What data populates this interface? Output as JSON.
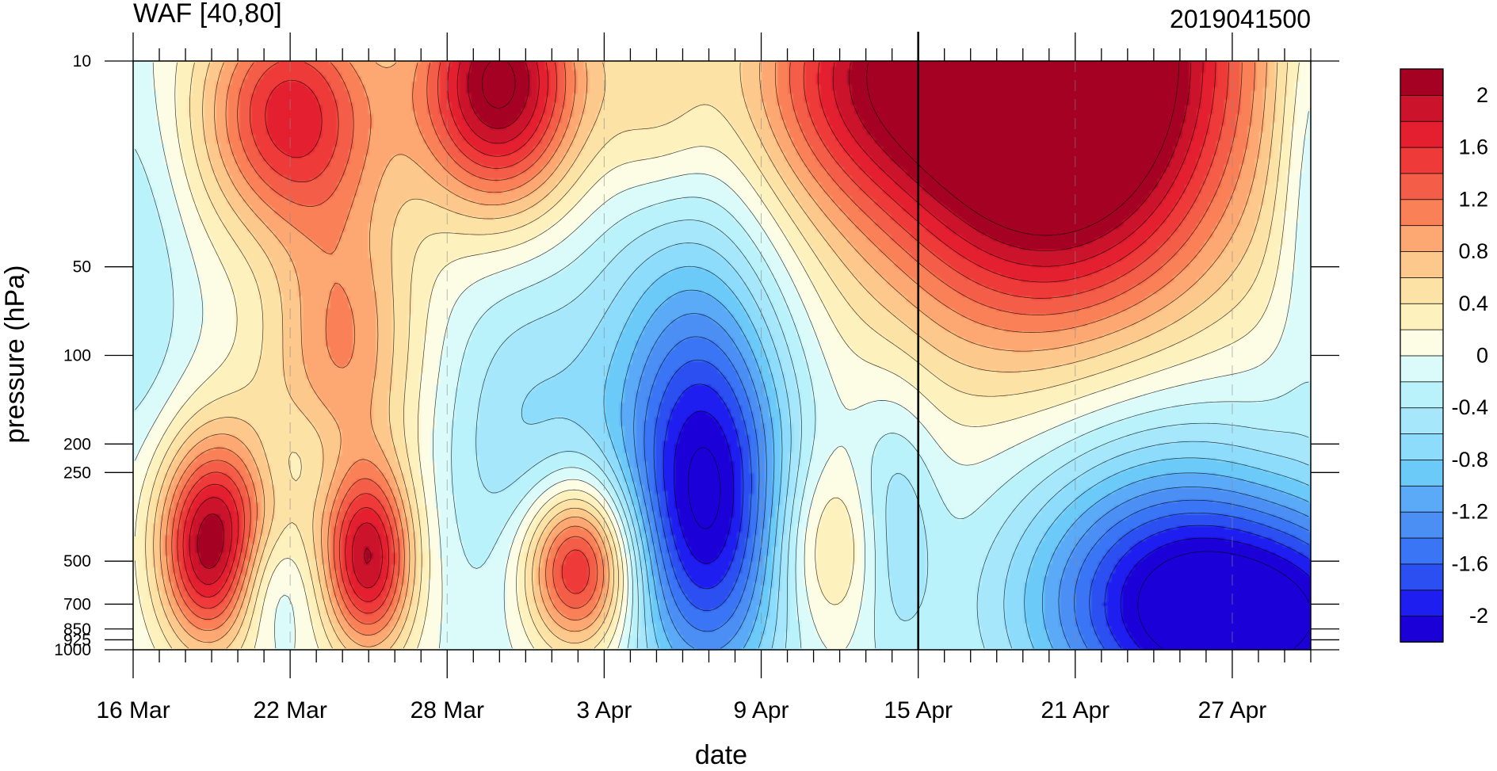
{
  "chart_data": {
    "type": "heatmap",
    "subtype": "filled-contour",
    "title": "WAF [40,80]",
    "run_label": "2019041500",
    "xlabel": "date",
    "ylabel": "pressure (hPa)",
    "y_scale": "log",
    "y_reversed": true,
    "ylim": [
      1000,
      10
    ],
    "x_ticks": [
      {
        "date": "2019-03-16",
        "label": "16 Mar"
      },
      {
        "date": "2019-03-22",
        "label": "22 Mar"
      },
      {
        "date": "2019-03-28",
        "label": "28 Mar"
      },
      {
        "date": "2019-04-03",
        "label": "3 Apr"
      },
      {
        "date": "2019-04-09",
        "label": "9 Apr"
      },
      {
        "date": "2019-04-15",
        "label": "15 Apr"
      },
      {
        "date": "2019-04-21",
        "label": "21 Apr"
      },
      {
        "date": "2019-04-27",
        "label": "27 Apr"
      }
    ],
    "xlim": [
      "2019-03-16",
      "2019-04-30"
    ],
    "y_ticks": [
      {
        "value": 10,
        "label": "10"
      },
      {
        "value": 50,
        "label": "50"
      },
      {
        "value": 100,
        "label": "100"
      },
      {
        "value": 200,
        "label": "200"
      },
      {
        "value": 250,
        "label": "250"
      },
      {
        "value": 500,
        "label": "500"
      },
      {
        "value": 700,
        "label": "700"
      },
      {
        "value": 850,
        "label": "850"
      },
      {
        "value": 925,
        "label": "925"
      },
      {
        "value": 1000,
        "label": "1000"
      }
    ],
    "forecast_start_date": "2019-04-15",
    "colorbar": {
      "levels": [
        -2.2,
        -2.0,
        -1.8,
        -1.6,
        -1.4,
        -1.2,
        -1.0,
        -0.8,
        -0.6,
        -0.4,
        -0.2,
        0.0,
        0.2,
        0.4,
        0.6,
        0.8,
        1.0,
        1.2,
        1.4,
        1.6,
        1.8,
        2.0,
        2.2
      ],
      "colors": [
        "#1c00d8",
        "#1f1ef1",
        "#2b4ff0",
        "#3975f4",
        "#4b8ff5",
        "#5aaaf7",
        "#6ccaf9",
        "#8edcfb",
        "#a6e7fb",
        "#b9f2fa",
        "#dbfbfb",
        "#fdfde6",
        "#fdf1bd",
        "#fde2a6",
        "#fdc88b",
        "#fda872",
        "#fa8057",
        "#f45d47",
        "#ee3b39",
        "#e41f30",
        "#cc132c",
        "#a40123"
      ],
      "labels": [
        {
          "value": 2.0,
          "label": "2"
        },
        {
          "value": 1.6,
          "label": "1.6"
        },
        {
          "value": 1.2,
          "label": "1.2"
        },
        {
          "value": 0.8,
          "label": "0.8"
        },
        {
          "value": 0.4,
          "label": "0.4"
        },
        {
          "value": 0.0,
          "label": "0"
        },
        {
          "value": -0.4,
          "label": "-0.4"
        },
        {
          "value": -0.8,
          "label": "-0.8"
        },
        {
          "value": -1.2,
          "label": "-1.2"
        },
        {
          "value": -1.6,
          "label": "-1.6"
        },
        {
          "value": -2.0,
          "label": "-2"
        }
      ]
    },
    "features": [
      {
        "date": "2019-03-19",
        "pressure": 500,
        "value": 1.8,
        "sd": 1.4,
        "sp": 0.22
      },
      {
        "date": "2019-03-20",
        "pressure": 280,
        "value": 0.9,
        "sd": 2.2,
        "sp": 0.22
      },
      {
        "date": "2019-03-22",
        "pressure": 15,
        "value": 1.7,
        "sd": 2.4,
        "sp": 0.28
      },
      {
        "date": "2019-03-25",
        "pressure": 500,
        "value": 1.9,
        "sd": 1.2,
        "sp": 0.22
      },
      {
        "date": "2019-03-24",
        "pressure": 90,
        "value": 1.0,
        "sd": 2.0,
        "sp": 0.35
      },
      {
        "date": "2019-03-21",
        "pressure": 550,
        "value": -0.6,
        "sd": 1.2,
        "sp": 0.18
      },
      {
        "date": "2019-03-22",
        "pressure": 230,
        "value": -0.5,
        "sd": 1.5,
        "sp": 0.15
      },
      {
        "date": "2019-03-16",
        "pressure": 60,
        "value": -0.4,
        "sd": 1.5,
        "sp": 0.55
      },
      {
        "date": "2019-03-30",
        "pressure": 12,
        "value": 2.3,
        "sd": 2.2,
        "sp": 0.3
      },
      {
        "date": "2019-03-31",
        "pressure": 200,
        "value": -0.6,
        "sd": 2.3,
        "sp": 0.45
      },
      {
        "date": "2019-04-02",
        "pressure": 520,
        "value": 2.0,
        "sd": 1.5,
        "sp": 0.2
      },
      {
        "date": "2019-04-07",
        "pressure": 350,
        "value": -1.9,
        "sd": 2.2,
        "sp": 0.45
      },
      {
        "date": "2019-04-06",
        "pressure": 100,
        "value": -0.7,
        "sd": 2.6,
        "sp": 0.5
      },
      {
        "date": "2019-04-12",
        "pressure": 12,
        "value": 0.9,
        "sd": 3.0,
        "sp": 0.3
      },
      {
        "date": "2019-04-05",
        "pressure": 14,
        "value": 0.5,
        "sd": 1.6,
        "sp": 0.25
      },
      {
        "date": "2019-04-12",
        "pressure": 450,
        "value": 0.7,
        "sd": 1.8,
        "sp": 0.22
      },
      {
        "date": "2019-04-14",
        "pressure": 400,
        "value": -0.8,
        "sd": 1.2,
        "sp": 0.3
      },
      {
        "date": "2019-04-20",
        "pressure": 10,
        "value": 3.6,
        "sd": 5.0,
        "sp": 0.6
      },
      {
        "date": "2019-04-28",
        "pressure": 800,
        "value": -2.1,
        "sd": 5.0,
        "sp": 0.28
      },
      {
        "date": "2019-04-24",
        "pressure": 450,
        "value": -1.0,
        "sd": 4.0,
        "sp": 0.4
      },
      {
        "date": "2019-04-30",
        "pressure": 20,
        "value": -0.5,
        "sd": 1.0,
        "sp": 0.5
      }
    ]
  }
}
